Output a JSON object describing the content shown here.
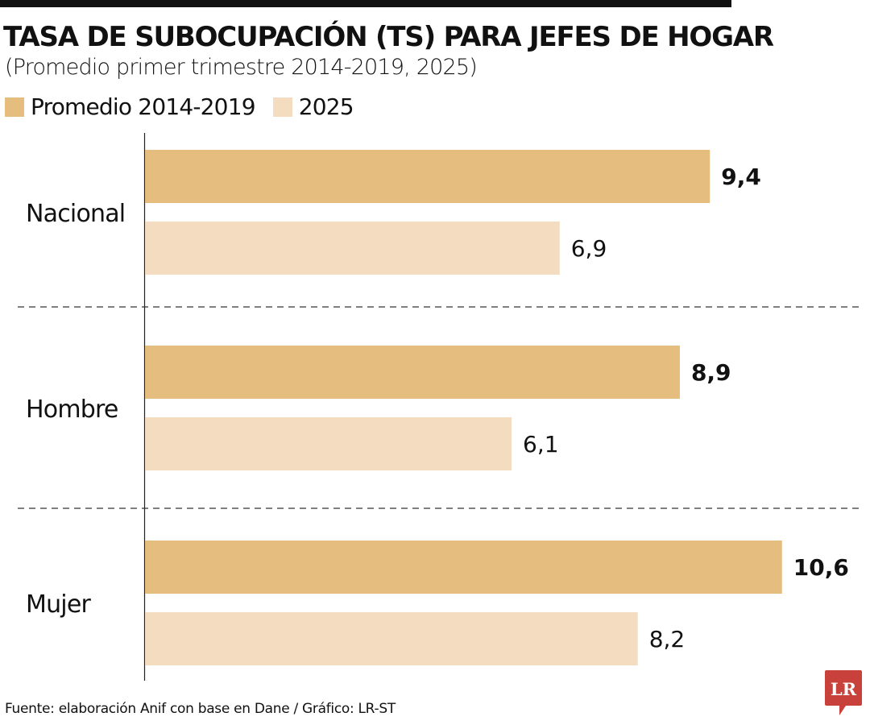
{
  "title": "TASA DE SUBOCUPACIÓN (TS) PARA JEFES DE HOGAR",
  "subtitle": "(Promedio primer trimestre 2014-2019, 2025)",
  "source": "Fuente: elaboración Anif con base en Dane / Gráfico: LR-ST",
  "logo_text": "LR",
  "colors": {
    "series1": "#e4bd7f",
    "series2": "#f3dcc0",
    "logo": "#c8413a"
  },
  "chart_data": {
    "type": "bar",
    "orientation": "horizontal",
    "title": "TASA DE SUBOCUPACIÓN (TS) PARA JEFES DE HOGAR",
    "categories": [
      "Nacional",
      "Hombre",
      "Mujer"
    ],
    "series": [
      {
        "name": "Promedio 2014-2019",
        "values": [
          9.4,
          8.9,
          10.6
        ],
        "labels": [
          "9,4",
          "8,9",
          "10,6"
        ]
      },
      {
        "name": "2025",
        "values": [
          6.9,
          6.1,
          8.2
        ],
        "labels": [
          "6,9",
          "6,1",
          "8,2"
        ]
      }
    ],
    "xlim": [
      0,
      11.5
    ],
    "legend": "top-left",
    "grid": false
  }
}
